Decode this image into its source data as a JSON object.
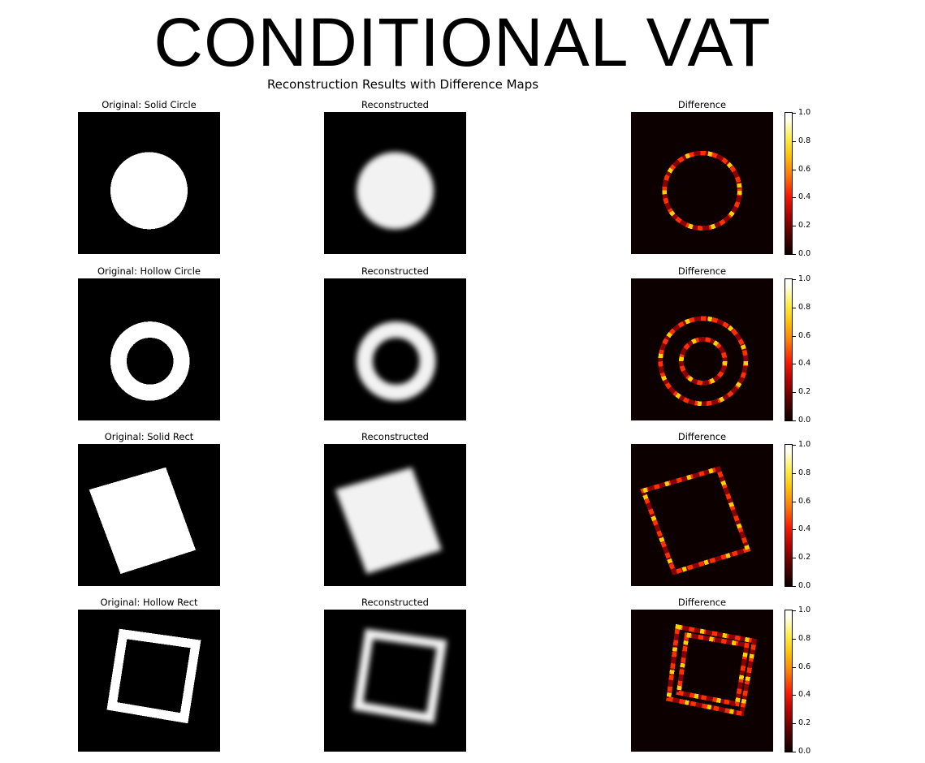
{
  "header": {
    "title": "CONDITIONAL VAT",
    "subtitle": "Reconstruction Results with Difference Maps"
  },
  "columns": {
    "reconstructed_label": "Reconstructed",
    "difference_label": "Difference"
  },
  "rows": [
    {
      "original_label": "Original: Solid Circle",
      "shape": "solid-circle"
    },
    {
      "original_label": "Original: Hollow Circle",
      "shape": "hollow-circle"
    },
    {
      "original_label": "Original: Solid Rect",
      "shape": "solid-rect"
    },
    {
      "original_label": "Original: Hollow Rect",
      "shape": "hollow-rect"
    }
  ],
  "colorbar": {
    "colormap": "hot",
    "range": [
      0.0,
      1.0
    ],
    "tick_labels": [
      "1.0",
      "0.8",
      "0.6",
      "0.4",
      "0.2",
      "0.0"
    ]
  },
  "colors": {
    "background": "#000000",
    "shape": "#ffffff",
    "diff_low": "#8b0000",
    "diff_mid": "#ff3000",
    "diff_high": "#ffd000"
  }
}
